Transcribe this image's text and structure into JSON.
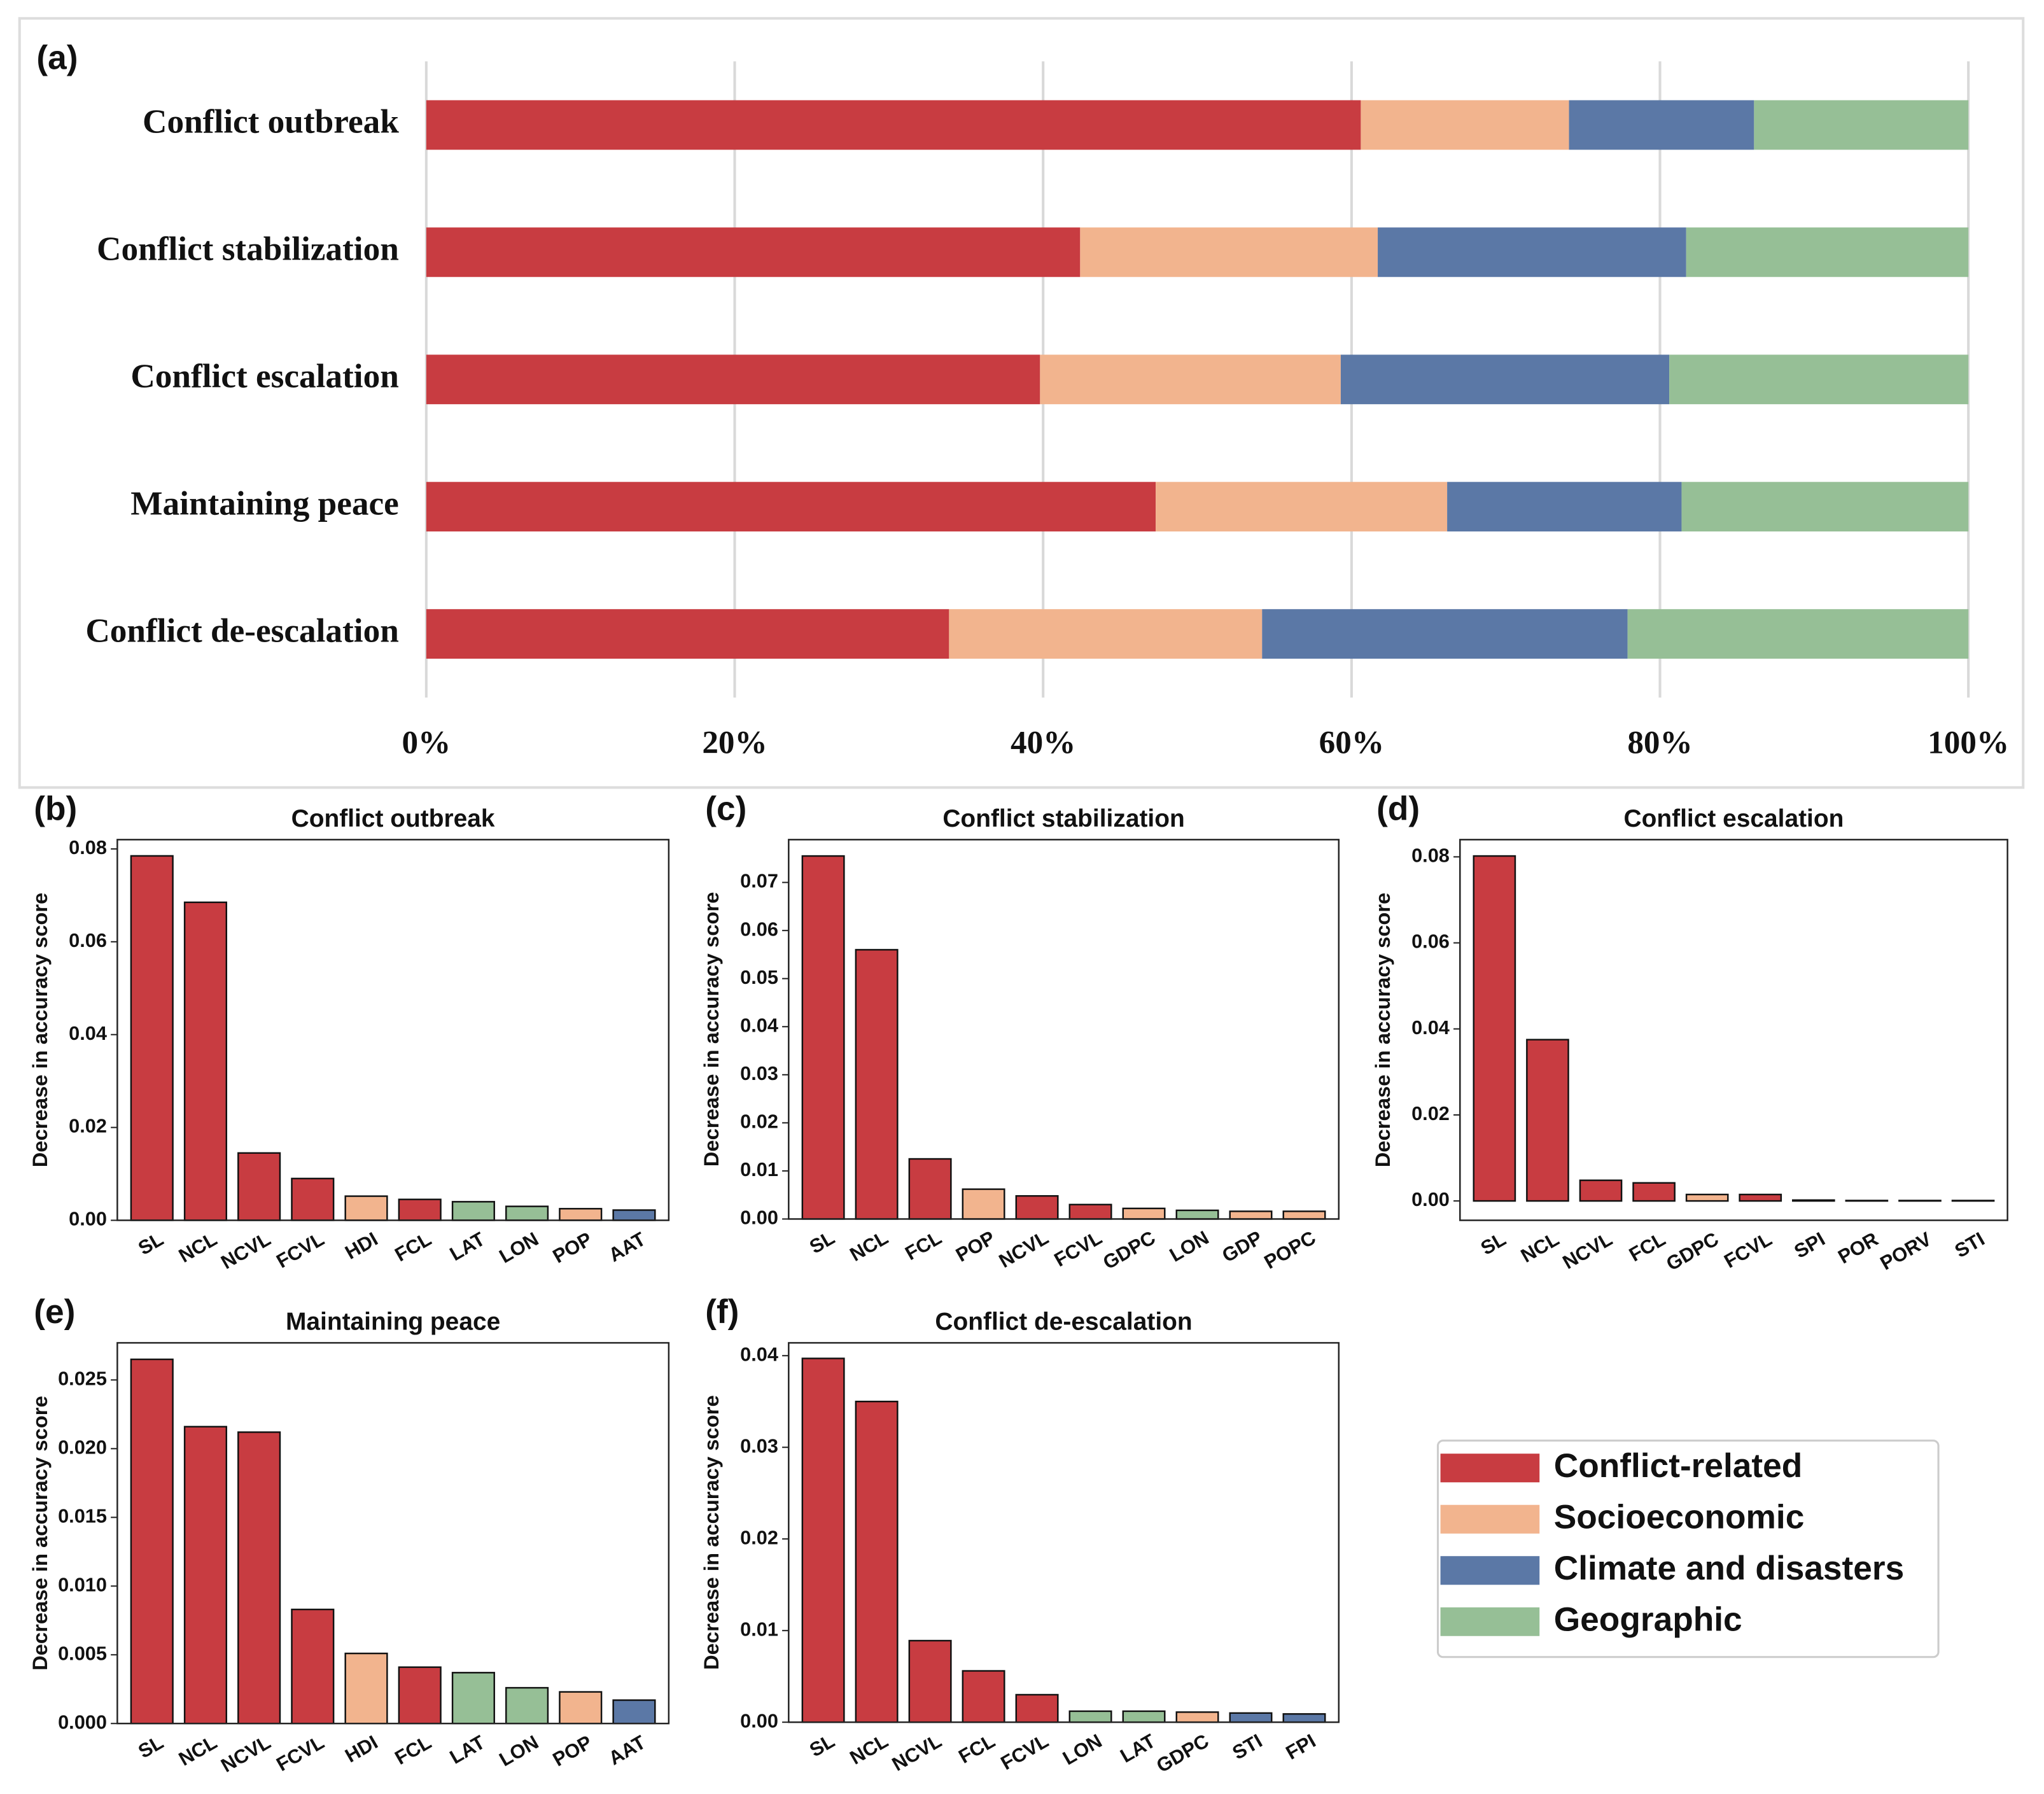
{
  "chart_data": [
    {
      "type": "stacked_bar",
      "orientation": "horizontal",
      "panel_label": "(a)",
      "categories": [
        "Conflict outbreak",
        "Conflict stabilization",
        "Conflict escalation",
        "Maintaining peace",
        "Conflict de-escalation"
      ],
      "series": [
        {
          "name": "Conflict-related",
          "color": "#c83c41",
          "values": [
            60.6,
            42.4,
            39.8,
            47.3,
            33.9
          ]
        },
        {
          "name": "Socioeconomic",
          "color": "#f2b48e",
          "values": [
            13.5,
            19.3,
            19.5,
            18.9,
            20.3
          ]
        },
        {
          "name": "Climate and disasters",
          "color": "#5b78a6",
          "values": [
            12.0,
            20.0,
            21.3,
            15.2,
            23.7
          ]
        },
        {
          "name": "Geographic",
          "color": "#96bf96",
          "values": [
            13.9,
            18.3,
            19.4,
            18.6,
            22.1
          ]
        }
      ],
      "xlim": [
        0,
        100
      ],
      "xticks": [
        {
          "value": 0,
          "label": "0%"
        },
        {
          "value": 20,
          "label": "20%"
        },
        {
          "value": 40,
          "label": "40%"
        },
        {
          "value": 60,
          "label": "60%"
        },
        {
          "value": 80,
          "label": "80%"
        },
        {
          "value": 100,
          "label": "100%"
        }
      ],
      "grid": true
    },
    {
      "type": "bar",
      "panel_label": "(b)",
      "title": "Conflict outbreak",
      "ylabel": "Decrease in accuracy score",
      "categories": [
        "SL",
        "NCL",
        "NCVL",
        "FCVL",
        "HDI",
        "FCL",
        "LAT",
        "LON",
        "POP",
        "AAT"
      ],
      "values": [
        0.0785,
        0.0685,
        0.0145,
        0.009,
        0.0052,
        0.0045,
        0.004,
        0.003,
        0.0025,
        0.0022
      ],
      "colors": [
        "#c83c41",
        "#c83c41",
        "#c83c41",
        "#c83c41",
        "#f2b48e",
        "#c83c41",
        "#96bf96",
        "#96bf96",
        "#f2b48e",
        "#5b78a6"
      ],
      "ylim": [
        0,
        0.082
      ],
      "yticks": [
        {
          "value": 0,
          "label": "0.00"
        },
        {
          "value": 0.02,
          "label": "0.02"
        },
        {
          "value": 0.04,
          "label": "0.04"
        },
        {
          "value": 0.06,
          "label": "0.06"
        },
        {
          "value": 0.08,
          "label": "0.08"
        }
      ]
    },
    {
      "type": "bar",
      "panel_label": "(c)",
      "title": "Conflict stabilization",
      "ylabel": "Decrease in accuracy score",
      "categories": [
        "SL",
        "NCL",
        "FCL",
        "POP",
        "NCVL",
        "FCVL",
        "GDPC",
        "LON",
        "GDP",
        "POPC"
      ],
      "values": [
        0.0755,
        0.056,
        0.0125,
        0.0062,
        0.0048,
        0.003,
        0.0022,
        0.0018,
        0.0016,
        0.0016
      ],
      "colors": [
        "#c83c41",
        "#c83c41",
        "#c83c41",
        "#f2b48e",
        "#c83c41",
        "#c83c41",
        "#f2b48e",
        "#96bf96",
        "#f2b48e",
        "#f2b48e"
      ],
      "ylim": [
        0,
        0.0789
      ],
      "yticks": [
        {
          "value": 0,
          "label": "0.00"
        },
        {
          "value": 0.01,
          "label": "0.01"
        },
        {
          "value": 0.02,
          "label": "0.02"
        },
        {
          "value": 0.03,
          "label": "0.03"
        },
        {
          "value": 0.04,
          "label": "0.04"
        },
        {
          "value": 0.05,
          "label": "0.05"
        },
        {
          "value": 0.06,
          "label": "0.06"
        },
        {
          "value": 0.07,
          "label": "0.07"
        }
      ]
    },
    {
      "type": "bar",
      "panel_label": "(d)",
      "title": "Conflict escalation",
      "ylabel": "Decrease in accuracy score",
      "categories": [
        "SL",
        "NCL",
        "NCVL",
        "FCL",
        "GDPC",
        "FCVL",
        "SPI",
        "POR",
        "PORV",
        "STI"
      ],
      "values": [
        0.0802,
        0.0375,
        0.0048,
        0.0042,
        0.0015,
        0.0015,
        0.0002,
        0.0001,
        0.0001,
        0.0001
      ],
      "colors": [
        "#c83c41",
        "#c83c41",
        "#c83c41",
        "#c83c41",
        "#f2b48e",
        "#c83c41",
        "#5b78a6",
        "#5b78a6",
        "#5b78a6",
        "#5b78a6"
      ],
      "ylim": [
        -0.0045,
        0.084
      ],
      "yticks": [
        {
          "value": 0,
          "label": "0.00"
        },
        {
          "value": 0.02,
          "label": "0.02"
        },
        {
          "value": 0.04,
          "label": "0.04"
        },
        {
          "value": 0.06,
          "label": "0.06"
        },
        {
          "value": 0.08,
          "label": "0.08"
        }
      ]
    },
    {
      "type": "bar",
      "panel_label": "(e)",
      "title": "Maintaining peace",
      "ylabel": "Decrease in accuracy score",
      "categories": [
        "SL",
        "NCL",
        "NCVL",
        "FCVL",
        "HDI",
        "FCL",
        "LAT",
        "LON",
        "POP",
        "AAT"
      ],
      "values": [
        0.0265,
        0.0216,
        0.0212,
        0.0083,
        0.0051,
        0.0041,
        0.0037,
        0.0026,
        0.0023,
        0.0017
      ],
      "colors": [
        "#c83c41",
        "#c83c41",
        "#c83c41",
        "#c83c41",
        "#f2b48e",
        "#c83c41",
        "#96bf96",
        "#96bf96",
        "#f2b48e",
        "#5b78a6"
      ],
      "ylim": [
        0,
        0.0277
      ],
      "yticks": [
        {
          "value": 0,
          "label": "0.000"
        },
        {
          "value": 0.005,
          "label": "0.005"
        },
        {
          "value": 0.01,
          "label": "0.010"
        },
        {
          "value": 0.015,
          "label": "0.015"
        },
        {
          "value": 0.02,
          "label": "0.020"
        },
        {
          "value": 0.025,
          "label": "0.025"
        }
      ]
    },
    {
      "type": "bar",
      "panel_label": "(f)",
      "title": "Conflict de-escalation",
      "ylabel": "Decrease in accuracy score",
      "categories": [
        "SL",
        "NCL",
        "NCVL",
        "FCL",
        "FCVL",
        "LON",
        "LAT",
        "GDPC",
        "STI",
        "FPI"
      ],
      "values": [
        0.0397,
        0.035,
        0.0089,
        0.0056,
        0.003,
        0.0012,
        0.0012,
        0.0011,
        0.001,
        0.0009
      ],
      "colors": [
        "#c83c41",
        "#c83c41",
        "#c83c41",
        "#c83c41",
        "#c83c41",
        "#96bf96",
        "#96bf96",
        "#f2b48e",
        "#5b78a6",
        "#5b78a6"
      ],
      "ylim": [
        0,
        0.0414
      ],
      "yticks": [
        {
          "value": 0,
          "label": "0.00"
        },
        {
          "value": 0.01,
          "label": "0.01"
        },
        {
          "value": 0.02,
          "label": "0.02"
        },
        {
          "value": 0.03,
          "label": "0.03"
        },
        {
          "value": 0.04,
          "label": "0.04"
        }
      ]
    }
  ]
}
